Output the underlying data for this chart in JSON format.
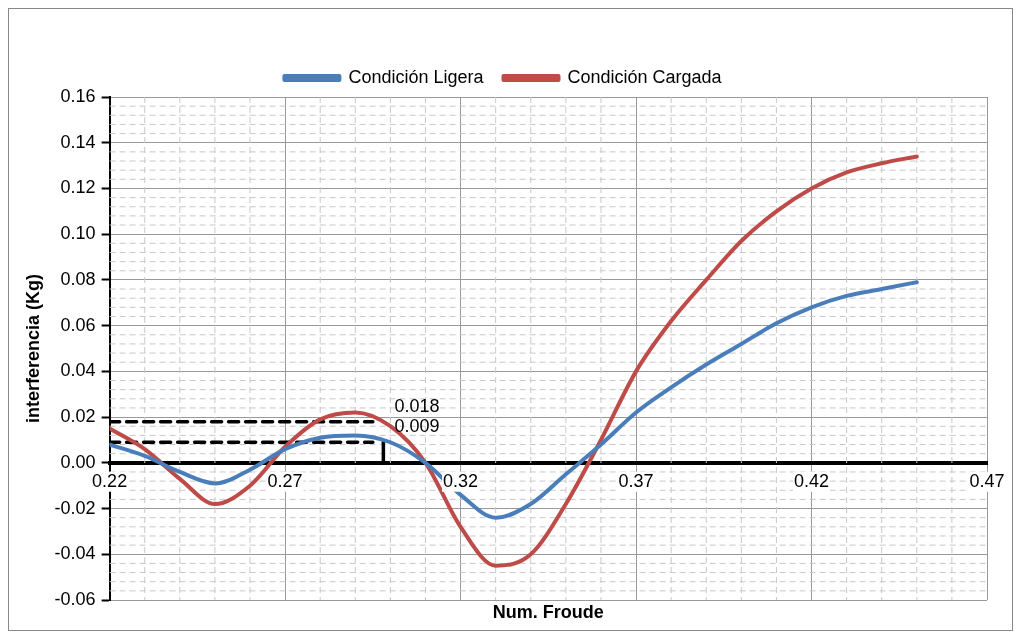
{
  "chart_data": {
    "type": "line",
    "xlabel": "Num. Froude",
    "ylabel": "interferencia (Kg)",
    "x": [
      0.22,
      0.23,
      0.24,
      0.25,
      0.26,
      0.27,
      0.28,
      0.29,
      0.3,
      0.31,
      0.32,
      0.33,
      0.34,
      0.35,
      0.36,
      0.37,
      0.38,
      0.39,
      0.4,
      0.41,
      0.42,
      0.43,
      0.44,
      0.45
    ],
    "series": [
      {
        "name": "Condición Ligera",
        "color": "#4a7ebb",
        "values": [
          0.008,
          0.003,
          -0.004,
          -0.009,
          -0.003,
          0.006,
          0.011,
          0.012,
          0.009,
          0.0,
          -0.014,
          -0.024,
          -0.018,
          -0.005,
          0.008,
          0.022,
          0.033,
          0.043,
          0.052,
          0.061,
          0.068,
          0.073,
          0.076,
          0.079
        ]
      },
      {
        "name": "Condición Cargada",
        "color": "#be4b48",
        "values": [
          0.015,
          0.006,
          -0.007,
          -0.018,
          -0.01,
          0.007,
          0.019,
          0.022,
          0.016,
          0.0,
          -0.028,
          -0.045,
          -0.04,
          -0.018,
          0.01,
          0.04,
          0.062,
          0.08,
          0.097,
          0.11,
          0.12,
          0.127,
          0.131,
          0.134
        ]
      },
      {
        "color": "#000000",
        "line_style": "dashed",
        "x": [
          0.22,
          0.295
        ],
        "values": [
          0.018,
          0.018
        ]
      },
      {
        "color": "#000000",
        "line_style": "dashed",
        "x": [
          0.22,
          0.295
        ],
        "values": [
          0.009,
          0.009
        ]
      },
      {
        "color": "#000000",
        "x": [
          0.298,
          0.298
        ],
        "values": [
          0,
          0.009
        ]
      }
    ],
    "annotations": [
      {
        "text": "0.018",
        "x": 0.3,
        "y": 0.018
      },
      {
        "text": "0.009",
        "x": 0.3,
        "y": 0.009
      }
    ],
    "xlim": [
      0.22,
      0.47
    ],
    "xticks": [
      0.22,
      0.27,
      0.32,
      0.37,
      0.42,
      0.47
    ],
    "ylim": [
      -0.06,
      0.16
    ],
    "yticks": [
      {
        "value": -0.06,
        "label": "-0.06"
      },
      {
        "value": -0.04,
        "label": "-0.04"
      },
      {
        "value": -0.02,
        "label": "-0.02"
      },
      {
        "value": 0,
        "label": "0.00"
      },
      {
        "value": 0.02,
        "label": "0.02"
      },
      {
        "value": 0.04,
        "label": "0.04"
      },
      {
        "value": 0.06,
        "label": "0.06"
      },
      {
        "value": 0.08,
        "label": "0.08"
      },
      {
        "value": 0.1,
        "label": "0.10"
      },
      {
        "value": 0.12,
        "label": "0.12"
      },
      {
        "value": 0.14,
        "label": "0.14"
      },
      {
        "value": 0.16,
        "label": "0.16"
      }
    ],
    "grid": true,
    "legend": "top",
    "marker": "none",
    "line_style": "solid"
  }
}
